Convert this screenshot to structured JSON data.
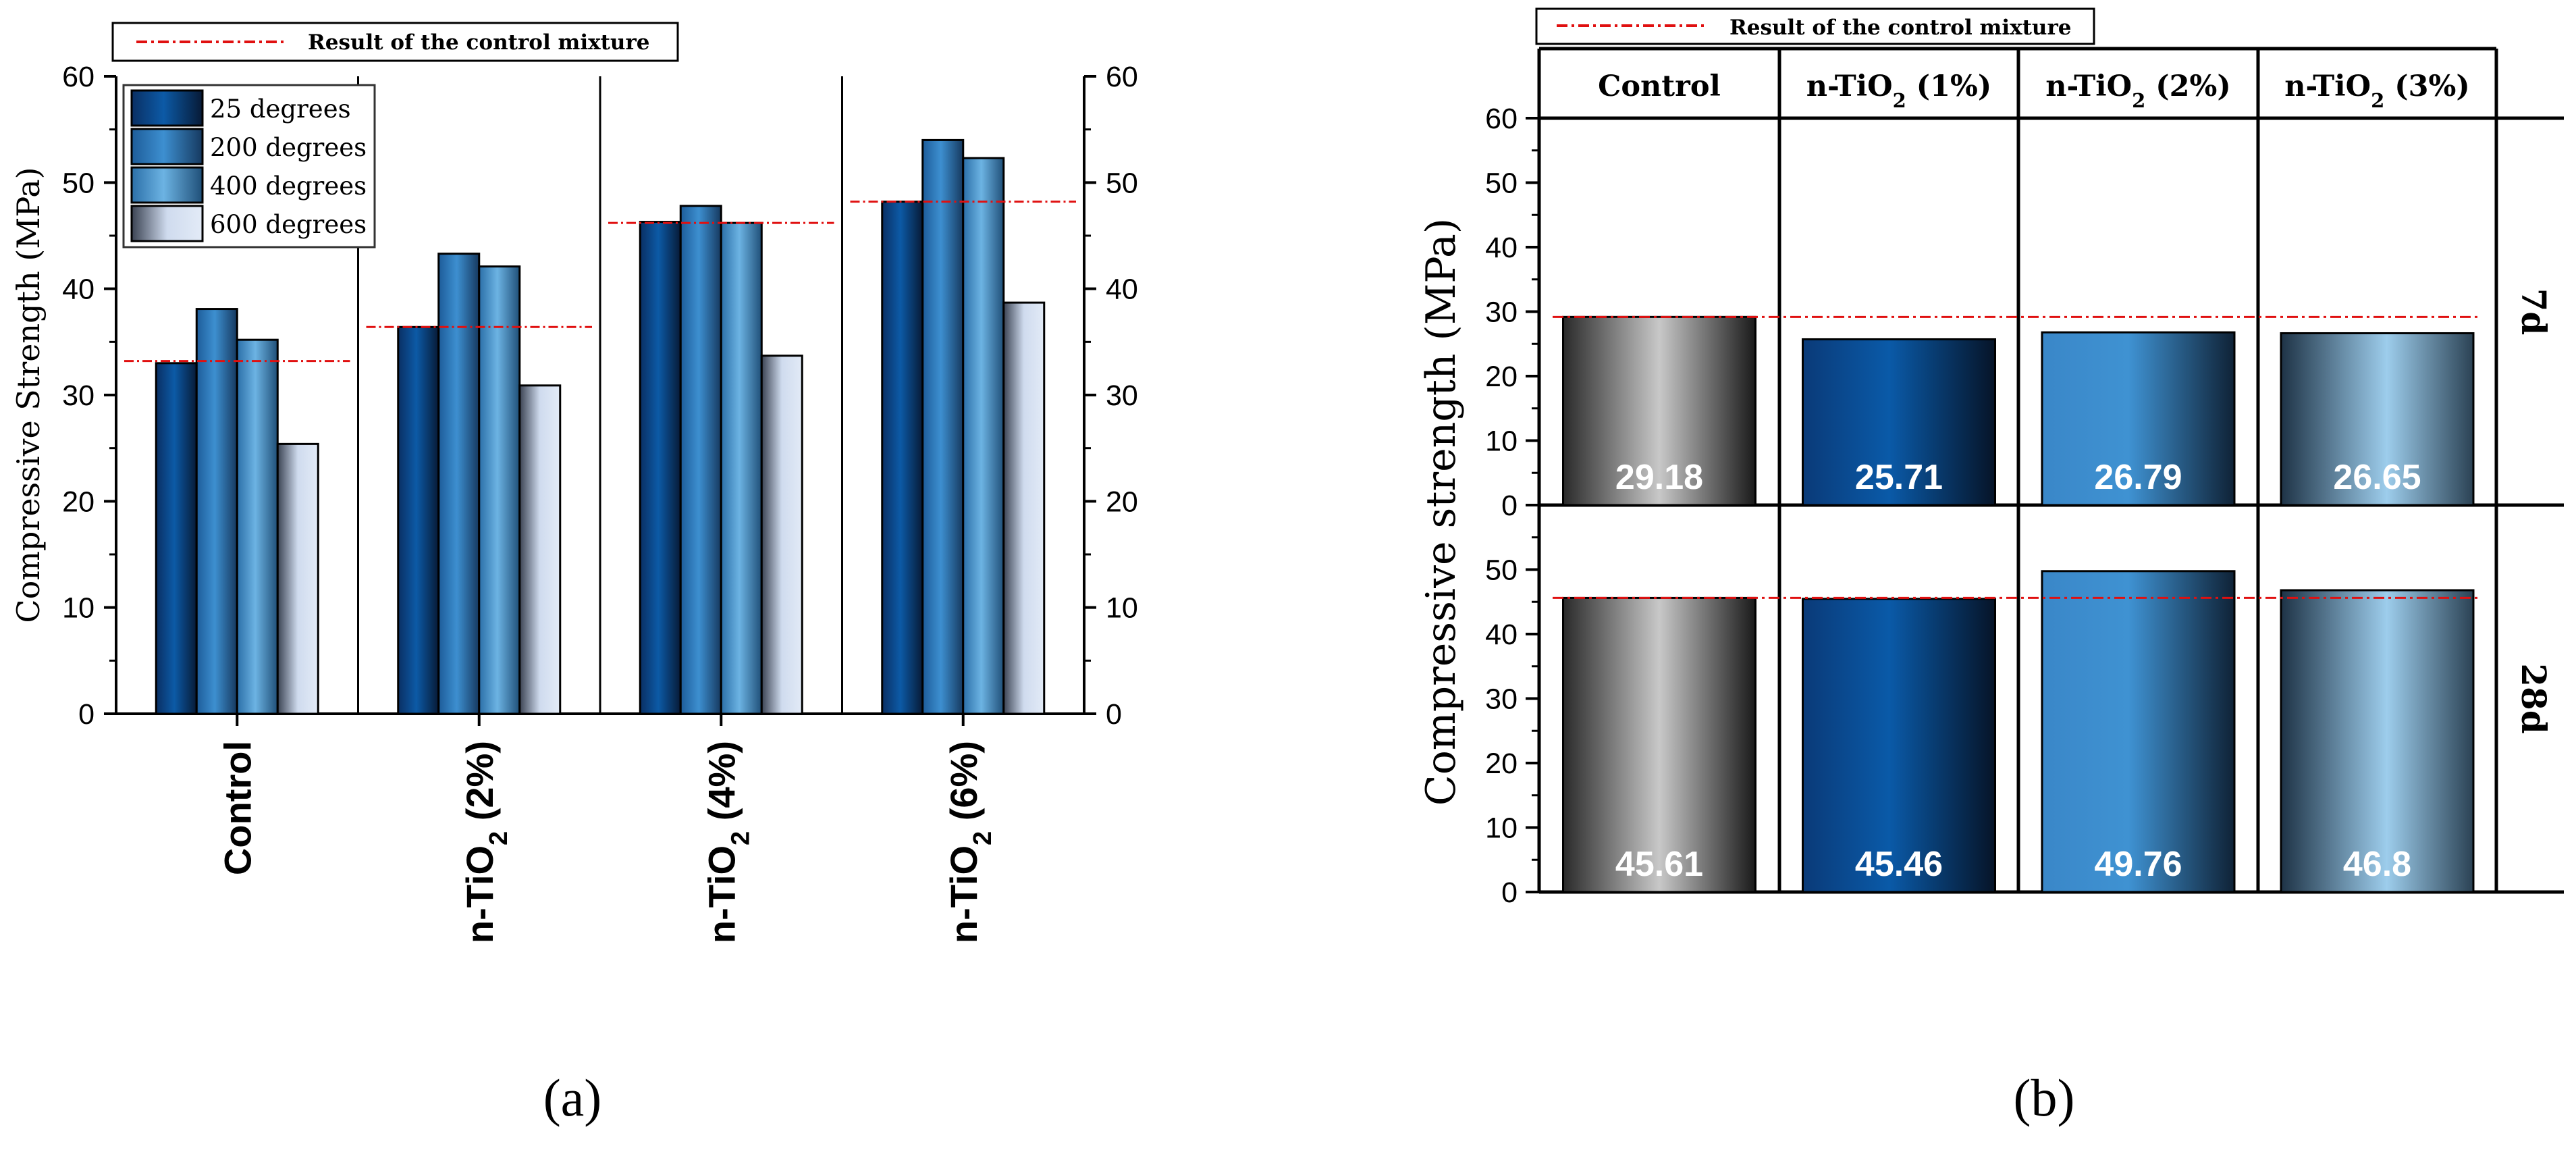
{
  "chart_data": [
    {
      "panel": "a",
      "type": "bar",
      "title": "",
      "ylabel": "Compressive Strength (MPa)",
      "xlabel": "",
      "ylim": [
        0,
        60
      ],
      "yticks": [
        "0",
        "10",
        "20",
        "30",
        "40",
        "50",
        "60"
      ],
      "categories": [
        {
          "pre": "Control",
          "sub": "",
          "post": ""
        },
        {
          "pre": "n-TiO",
          "sub": "2",
          "post": " (2%)"
        },
        {
          "pre": "n-TiO",
          "sub": "2",
          "post": " (4%)"
        },
        {
          "pre": "n-TiO",
          "sub": "2",
          "post": " (6%)"
        }
      ],
      "series": [
        {
          "name": "25 degrees",
          "values": [
            33.0,
            36.4,
            46.3,
            48.2
          ]
        },
        {
          "name": "200 degrees",
          "values": [
            38.1,
            43.3,
            47.8,
            54.0
          ]
        },
        {
          "name": "400 degrees",
          "values": [
            35.2,
            42.1,
            46.2,
            52.3
          ]
        },
        {
          "name": "600 degrees",
          "values": [
            25.4,
            30.9,
            33.7,
            38.7
          ]
        }
      ],
      "control_reference": [
        33.2,
        36.4,
        46.2,
        48.2
      ],
      "control_legend": "Result of the control mixture",
      "legend_position": "top-left",
      "panel_label": "(a)"
    },
    {
      "panel": "b",
      "type": "bar",
      "ylabel": "Compressive strength (MPa)",
      "columns": [
        {
          "pre": "Control",
          "sub": "",
          "post": ""
        },
        {
          "pre": "n-TiO",
          "sub": "2",
          "post": " (1%)"
        },
        {
          "pre": "n-TiO",
          "sub": "2",
          "post": " (2%)"
        },
        {
          "pre": "n-TiO",
          "sub": "2",
          "post": " (3%)"
        }
      ],
      "rows": [
        {
          "name": "7d",
          "ylim": [
            0,
            60
          ],
          "yticks": [
            "0",
            "10",
            "20",
            "30",
            "40",
            "50",
            "60"
          ],
          "values": [
            29.18,
            25.71,
            26.79,
            26.65
          ],
          "labels": [
            "29.18",
            "25.71",
            "26.79",
            "26.65"
          ],
          "control_reference": 29.18
        },
        {
          "name": "28d",
          "ylim": [
            0,
            60
          ],
          "yticks": [
            "0",
            "10",
            "20",
            "30",
            "40",
            "50"
          ],
          "values": [
            45.61,
            45.46,
            49.76,
            46.8
          ],
          "labels": [
            "45.61",
            "45.46",
            "49.76",
            "46.8"
          ],
          "control_reference": 45.61
        }
      ],
      "control_legend": "Result of the control mixture",
      "panel_label": "(b)"
    }
  ]
}
